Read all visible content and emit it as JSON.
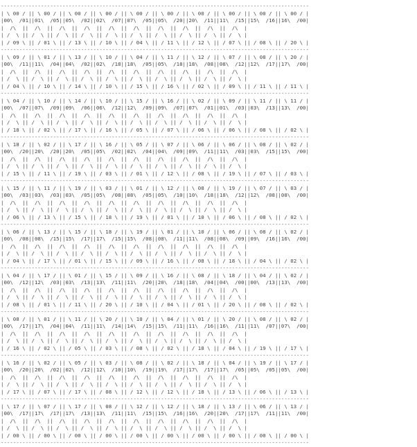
{
  "puzzle": {
    "rows": [
      {
        "top": [
          "00",
          "00",
          "00",
          "00",
          "00",
          "00",
          "00",
          "00",
          "00",
          "00"
        ],
        "left": [
          "00",
          "01",
          "05",
          "02",
          "07",
          "05",
          "20",
          "11",
          "15",
          "16"
        ],
        "right": [
          "01",
          "05",
          "02",
          "07",
          "05",
          "20",
          "11",
          "15",
          "16",
          "00"
        ],
        "bottom": [
          "09",
          "01",
          "13",
          "10",
          "04",
          "11",
          "12",
          "07",
          "08",
          "20"
        ]
      },
      {
        "top": [
          "09",
          "01",
          "13",
          "10",
          "04",
          "11",
          "12",
          "07",
          "08",
          "20"
        ],
        "left": [
          "00",
          "11",
          "04",
          "02",
          "18",
          "05",
          "18",
          "08",
          "12",
          "17"
        ],
        "right": [
          "11",
          "04",
          "02",
          "18",
          "05",
          "18",
          "08",
          "12",
          "17",
          "00"
        ],
        "bottom": [
          "04",
          "10",
          "14",
          "10",
          "15",
          "16",
          "02",
          "09",
          "11",
          "11"
        ]
      },
      {
        "top": [
          "04",
          "10",
          "14",
          "10",
          "15",
          "16",
          "02",
          "09",
          "11",
          "11"
        ],
        "left": [
          "00",
          "07",
          "09",
          "06",
          "12",
          "09",
          "07",
          "01",
          "03",
          "13"
        ],
        "right": [
          "07",
          "09",
          "06",
          "12",
          "09",
          "07",
          "01",
          "03",
          "13",
          "00"
        ],
        "bottom": [
          "18",
          "02",
          "17",
          "16",
          "05",
          "07",
          "06",
          "06",
          "08",
          "02"
        ]
      },
      {
        "top": [
          "18",
          "02",
          "17",
          "16",
          "05",
          "07",
          "06",
          "06",
          "08",
          "02"
        ],
        "left": [
          "00",
          "20",
          "20",
          "05",
          "02",
          "04",
          "09",
          "11",
          "03",
          "15"
        ],
        "right": [
          "20",
          "20",
          "05",
          "02",
          "04",
          "09",
          "11",
          "03",
          "15",
          "00"
        ],
        "bottom": [
          "15",
          "11",
          "19",
          "03",
          "01",
          "12",
          "08",
          "19",
          "07",
          "03"
        ]
      },
      {
        "top": [
          "15",
          "11",
          "19",
          "03",
          "01",
          "12",
          "08",
          "19",
          "07",
          "03"
        ],
        "left": [
          "00",
          "03",
          "03",
          "05",
          "08",
          "05",
          "10",
          "18",
          "12",
          "08"
        ],
        "right": [
          "03",
          "03",
          "05",
          "08",
          "05",
          "10",
          "18",
          "12",
          "08",
          "00"
        ],
        "bottom": [
          "06",
          "13",
          "15",
          "18",
          "19",
          "01",
          "10",
          "06",
          "08",
          "02"
        ]
      },
      {
        "top": [
          "06",
          "13",
          "15",
          "18",
          "19",
          "01",
          "10",
          "06",
          "08",
          "02"
        ],
        "left": [
          "00",
          "08",
          "15",
          "17",
          "15",
          "08",
          "11",
          "08",
          "09",
          "16"
        ],
        "right": [
          "08",
          "15",
          "17",
          "15",
          "08",
          "11",
          "08",
          "09",
          "16",
          "00"
        ],
        "bottom": [
          "04",
          "17",
          "01",
          "15",
          "09",
          "16",
          "08",
          "18",
          "04",
          "02"
        ]
      },
      {
        "top": [
          "04",
          "17",
          "01",
          "15",
          "09",
          "16",
          "08",
          "18",
          "04",
          "02"
        ],
        "left": [
          "00",
          "12",
          "03",
          "13",
          "11",
          "20",
          "18",
          "04",
          "00",
          "13"
        ],
        "right": [
          "12",
          "03",
          "13",
          "11",
          "20",
          "18",
          "04",
          "00",
          "13",
          "00"
        ],
        "bottom": [
          "08",
          "01",
          "11",
          "20",
          "10",
          "04",
          "01",
          "20",
          "08",
          "02"
        ]
      },
      {
        "top": [
          "08",
          "01",
          "11",
          "20",
          "10",
          "04",
          "01",
          "20",
          "08",
          "02"
        ],
        "left": [
          "00",
          "17",
          "04",
          "11",
          "14",
          "15",
          "11",
          "16",
          "11",
          "07"
        ],
        "right": [
          "17",
          "04",
          "11",
          "14",
          "15",
          "11",
          "16",
          "11",
          "07",
          "00"
        ],
        "bottom": [
          "16",
          "02",
          "05",
          "03",
          "08",
          "02",
          "18",
          "04",
          "19",
          "17"
        ]
      },
      {
        "top": [
          "16",
          "02",
          "05",
          "03",
          "08",
          "02",
          "18",
          "04",
          "19",
          "17"
        ],
        "left": [
          "00",
          "20",
          "02",
          "12",
          "10",
          "19",
          "17",
          "17",
          "05",
          "05"
        ],
        "right": [
          "20",
          "02",
          "12",
          "10",
          "19",
          "17",
          "17",
          "05",
          "05",
          "00"
        ],
        "bottom": [
          "17",
          "07",
          "17",
          "08",
          "12",
          "12",
          "18",
          "13",
          "06",
          "13"
        ]
      },
      {
        "top": [
          "17",
          "07",
          "17",
          "08",
          "12",
          "12",
          "18",
          "13",
          "06",
          "13"
        ],
        "left": [
          "00",
          "17",
          "17",
          "13",
          "11",
          "15",
          "16",
          "20",
          "17",
          "11"
        ],
        "right": [
          "17",
          "17",
          "13",
          "11",
          "15",
          "16",
          "20",
          "17",
          "11",
          "00"
        ],
        "bottom": [
          "00",
          "00",
          "00",
          "00",
          "00",
          "00",
          "00",
          "00",
          "00",
          "00"
        ]
      }
    ]
  }
}
